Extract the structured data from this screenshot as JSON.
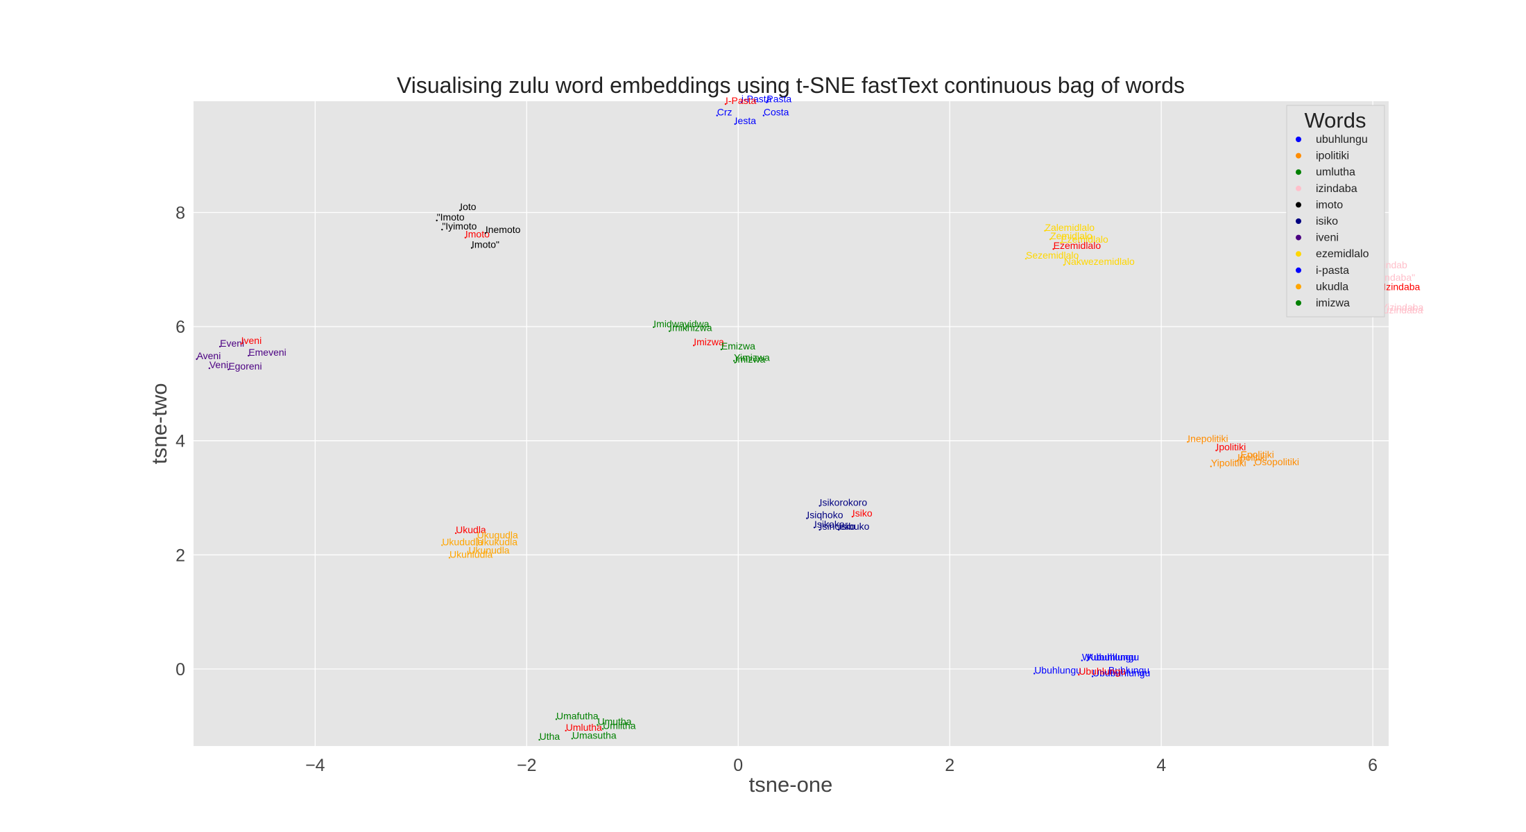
{
  "chart_data": {
    "type": "scatter",
    "title": "Visualising zulu word embeddings using t-SNE fastText continuous bag of words",
    "xlabel": "tsne-one",
    "ylabel": "tsne-two",
    "xlim": [
      -5.15,
      6.15
    ],
    "ylim": [
      -1.35,
      9.95
    ],
    "xticks": [
      "−4",
      "−2",
      "0",
      "2",
      "4",
      "6"
    ],
    "xtick_values": [
      -4,
      -2,
      0,
      2,
      4,
      6
    ],
    "yticks": [
      "0",
      "2",
      "4",
      "6",
      "8"
    ],
    "ytick_values": [
      0,
      2,
      4,
      6,
      8
    ],
    "grid": true,
    "background": "#e5e5e5",
    "legend": {
      "title": "Words",
      "placement": "top-right",
      "entries": [
        {
          "name": "ubuhlungu",
          "color": "#0000ff"
        },
        {
          "name": "ipolitiki",
          "color": "#ff8c00"
        },
        {
          "name": "umlutha",
          "color": "#008000"
        },
        {
          "name": "izindaba",
          "color": "#ffc0cb"
        },
        {
          "name": "imoto",
          "color": "#000000"
        },
        {
          "name": "isiko",
          "color": "#000080"
        },
        {
          "name": "iveni",
          "color": "#4b0082"
        },
        {
          "name": "ezemidlalo",
          "color": "#ffd700"
        },
        {
          "name": "i-pasta",
          "color": "#0000ff"
        },
        {
          "name": "ukudla",
          "color": "#ffa500"
        },
        {
          "name": "imizwa",
          "color": "#008000"
        }
      ]
    },
    "query_color": "#ff0000",
    "series": [
      {
        "name": "ubuhlungu",
        "color": "#0000ff",
        "points": [
          {
            "label": "Kubuhlungu",
            "x": 3.3,
            "y": 0.15
          },
          {
            "label": "Wubuhlungu",
            "x": 3.25,
            "y": 0.15
          },
          {
            "label": "Ubuhlungu",
            "x": 2.8,
            "y": -0.08
          },
          {
            "label": "Buhlungu",
            "x": 3.5,
            "y": -0.08
          },
          {
            "label": "Ububuhlungu",
            "x": 3.35,
            "y": -0.13
          },
          {
            "label": "Ubuhlungu",
            "x": 3.22,
            "y": -0.1,
            "query": true
          }
        ]
      },
      {
        "name": "ipolitiki",
        "color": "#ff8c00",
        "points": [
          {
            "label": "Inepolitiki",
            "x": 4.25,
            "y": 3.98
          },
          {
            "label": "Ipolitiki",
            "x": 4.52,
            "y": 3.83,
            "query": true
          },
          {
            "label": "Epolitiki",
            "x": 4.75,
            "y": 3.7
          },
          {
            "label": "Ipolitiki",
            "x": 4.72,
            "y": 3.65
          },
          {
            "label": "Yipolitiki",
            "x": 4.47,
            "y": 3.55
          },
          {
            "label": "Osopolitiki",
            "x": 4.88,
            "y": 3.57
          }
        ]
      },
      {
        "name": "umlutha",
        "color": "#008000",
        "points": [
          {
            "label": "Umafutha",
            "x": -1.72,
            "y": -0.88
          },
          {
            "label": "Umutha",
            "x": -1.33,
            "y": -0.98
          },
          {
            "label": "Umlitha",
            "x": -1.28,
            "y": -1.05
          },
          {
            "label": "Umlutha",
            "x": -1.63,
            "y": -1.08,
            "query": true
          },
          {
            "label": "Umasutha",
            "x": -1.57,
            "y": -1.22
          },
          {
            "label": "Utha",
            "x": -1.88,
            "y": -1.24
          }
        ]
      },
      {
        "name": "izindaba",
        "color": "#ffc0cb",
        "points": [
          {
            "label": "Izindab",
            "x": 6.03,
            "y": 7.02
          },
          {
            "label": "Izindaba\"",
            "x": 6.02,
            "y": 6.8
          },
          {
            "label": "Izindaba",
            "x": 6.1,
            "y": 6.64,
            "query": true
          },
          {
            "label": "Yizindaba",
            "x": 6.08,
            "y": 6.28
          },
          {
            "label": "Kuzindaba",
            "x": 6.04,
            "y": 6.23
          }
        ]
      },
      {
        "name": "imoto",
        "color": "#000000",
        "points": [
          {
            "label": "Ioto",
            "x": -2.63,
            "y": 8.04
          },
          {
            "label": "\"Imoto",
            "x": -2.85,
            "y": 7.86
          },
          {
            "label": "\"Iyimoto",
            "x": -2.8,
            "y": 7.7
          },
          {
            "label": "Imoto",
            "x": -2.58,
            "y": 7.56,
            "query": true
          },
          {
            "label": "Inemoto",
            "x": -2.39,
            "y": 7.64
          },
          {
            "label": "Imoto\"",
            "x": -2.52,
            "y": 7.38
          }
        ]
      },
      {
        "name": "isiko",
        "color": "#000080",
        "points": [
          {
            "label": "Isikorokoro",
            "x": 0.77,
            "y": 2.86
          },
          {
            "label": "Isiqhoko",
            "x": 0.65,
            "y": 2.64
          },
          {
            "label": "Isikoko",
            "x": 0.72,
            "y": 2.48
          },
          {
            "label": "Isinceko",
            "x": 0.77,
            "y": 2.44
          },
          {
            "label": "Isiko",
            "x": 1.08,
            "y": 2.67,
            "query": true
          },
          {
            "label": "Isibuko",
            "x": 0.95,
            "y": 2.44
          }
        ]
      },
      {
        "name": "iveni",
        "color": "#4b0082",
        "points": [
          {
            "label": "Eveni",
            "x": -4.9,
            "y": 5.65
          },
          {
            "label": "Iveni",
            "x": -4.7,
            "y": 5.7,
            "query": true
          },
          {
            "label": "Emeveni",
            "x": -4.63,
            "y": 5.49
          },
          {
            "label": "Aveni",
            "x": -5.12,
            "y": 5.43
          },
          {
            "label": "Veni",
            "x": -5.0,
            "y": 5.27
          },
          {
            "label": "Egoreni",
            "x": -4.82,
            "y": 5.25
          }
        ]
      },
      {
        "name": "ezemidlalo",
        "color": "#ffd700",
        "points": [
          {
            "label": "Zalemidlalo",
            "x": 2.9,
            "y": 7.68
          },
          {
            "label": "Zemidlalo",
            "x": 2.95,
            "y": 7.53
          },
          {
            "label": "Ezemidlalo",
            "x": 3.05,
            "y": 7.47
          },
          {
            "label": "Ezemidlalo",
            "x": 2.98,
            "y": 7.36,
            "query": true
          },
          {
            "label": "Sezemidlalo",
            "x": 2.72,
            "y": 7.19
          },
          {
            "label": "Nakwezemidlalo",
            "x": 3.08,
            "y": 7.08
          }
        ]
      },
      {
        "name": "i-pasta",
        "color": "#0000ff",
        "points": [
          {
            "label": "i-Pasta",
            "x": 0.03,
            "y": 9.93
          },
          {
            "label": "Pasta",
            "x": 0.27,
            "y": 9.93
          },
          {
            "label": "I-Pasta",
            "x": -0.12,
            "y": 9.9,
            "query": true
          },
          {
            "label": "Crz",
            "x": -0.2,
            "y": 9.7
          },
          {
            "label": "Costa",
            "x": 0.24,
            "y": 9.7
          },
          {
            "label": "Iesta",
            "x": -0.03,
            "y": 9.55
          }
        ]
      },
      {
        "name": "ukudla",
        "color": "#ffa500",
        "points": [
          {
            "label": "Ukudla",
            "x": -2.67,
            "y": 2.38,
            "query": true
          },
          {
            "label": "Ukugudla",
            "x": -2.47,
            "y": 2.29
          },
          {
            "label": "Ukududla",
            "x": -2.8,
            "y": 2.17
          },
          {
            "label": "Ukukudla",
            "x": -2.47,
            "y": 2.17
          },
          {
            "label": "Ukunudla",
            "x": -2.55,
            "y": 2.02
          },
          {
            "label": "Ukuhludla",
            "x": -2.73,
            "y": 1.95
          }
        ]
      },
      {
        "name": "imizwa",
        "color": "#008000",
        "points": [
          {
            "label": "Imidwayidwa",
            "x": -0.8,
            "y": 5.99
          },
          {
            "label": "Imikhizwa",
            "x": -0.65,
            "y": 5.92
          },
          {
            "label": "Imizwa",
            "x": -0.42,
            "y": 5.67,
            "query": true
          },
          {
            "label": "Emizwa",
            "x": -0.16,
            "y": 5.6
          },
          {
            "label": "Yimizwa",
            "x": -0.04,
            "y": 5.4
          },
          {
            "label": "Imizwa",
            "x": -0.03,
            "y": 5.37
          }
        ]
      }
    ]
  }
}
